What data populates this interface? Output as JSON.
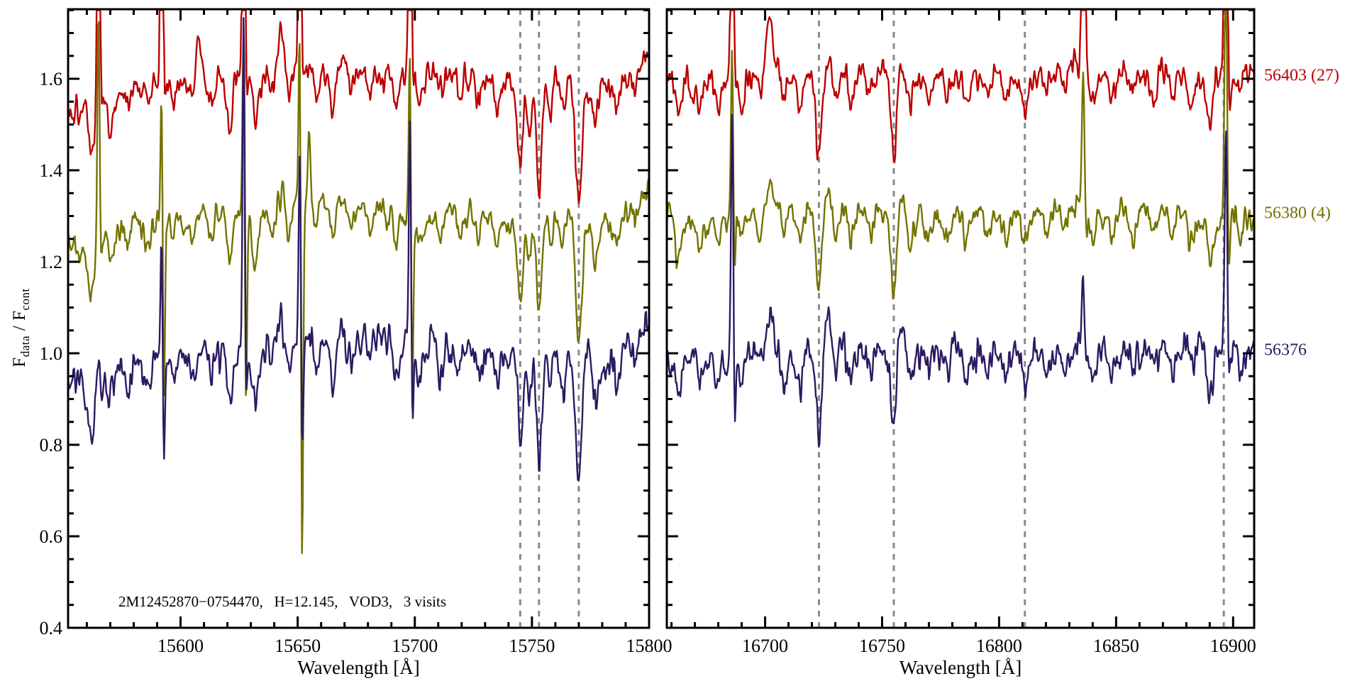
{
  "figure": {
    "ylabel_f1": "F",
    "ylabel_s1": "data",
    "ylabel_f2": " / F",
    "ylabel_s2": "cont"
  },
  "chart_data": {
    "type": "line",
    "title": "",
    "xlabel": "Wavelength [Å]",
    "ylabel": "F_data / F_cont",
    "annotation": "2M12452870−0754470,   H=12.145,   VOD3,   3 visits",
    "ylim": [
      0.4,
      1.752
    ],
    "yticks": [
      0.4,
      0.6,
      0.8,
      1.0,
      1.2,
      1.4,
      1.6
    ],
    "ytick_labels": [
      "0.4",
      "0.6",
      "0.8",
      "1.0",
      "1.2",
      "1.4",
      "1.6"
    ],
    "y_minor_step": 0.05,
    "x_minor_step": 10,
    "grid": false,
    "legend_position": "right-edge",
    "dashed_line_color": "#8a8a8a",
    "frame_color": "#000000",
    "panels": [
      {
        "xlim": [
          15552,
          15800
        ],
        "xticks": [
          15600,
          15650,
          15700,
          15750,
          15800
        ],
        "xtick_labels": [
          "15600",
          "15650",
          "15700",
          "15750",
          "15800"
        ],
        "dashed_lines": [
          15745,
          15753,
          15770
        ],
        "continuum": [
          [
            15552,
            -0.05
          ],
          [
            15560,
            -0.075
          ],
          [
            15568,
            -0.05
          ],
          [
            15580,
            -0.02
          ],
          [
            15595,
            -0.005
          ],
          [
            15610,
            0.0
          ],
          [
            15625,
            0.005
          ],
          [
            15640,
            0.015
          ],
          [
            15652,
            0.02
          ],
          [
            15668,
            0.025
          ],
          [
            15682,
            0.02
          ],
          [
            15695,
            0.01
          ],
          [
            15705,
            0.0
          ],
          [
            15715,
            0.01
          ],
          [
            15726,
            0.005
          ],
          [
            15736,
            -0.005
          ],
          [
            15742,
            -0.02
          ],
          [
            15756,
            -0.005
          ],
          [
            15761,
            0.0
          ],
          [
            15774,
            -0.015
          ],
          [
            15782,
            -0.02
          ],
          [
            15790,
            0.0
          ],
          [
            15800,
            0.05
          ]
        ],
        "absorption_features": [
          [
            15562,
            0.1,
            1.2
          ],
          [
            15570,
            0.05,
            1.0
          ],
          [
            15578,
            0.04,
            1.0
          ],
          [
            15586,
            0.05,
            1.0
          ],
          [
            15597,
            0.04,
            1.0
          ],
          [
            15605,
            0.05,
            1.0
          ],
          [
            15613,
            0.06,
            1.0
          ],
          [
            15621,
            0.1,
            1.2
          ],
          [
            15632,
            0.11,
            1.2
          ],
          [
            15639,
            0.05,
            1.0
          ],
          [
            15646,
            0.07,
            1.0
          ],
          [
            15658,
            0.05,
            1.0
          ],
          [
            15665,
            0.08,
            1.1
          ],
          [
            15673,
            0.05,
            1.0
          ],
          [
            15681,
            0.04,
            1.0
          ],
          [
            15692,
            0.07,
            1.0
          ],
          [
            15702,
            0.06,
            1.0
          ],
          [
            15711,
            0.05,
            1.0
          ],
          [
            15719,
            0.05,
            1.0
          ],
          [
            15727,
            0.04,
            1.0
          ],
          [
            15735,
            0.06,
            1.0
          ],
          [
            15745,
            0.16,
            1.1
          ],
          [
            15749,
            0.09,
            0.9
          ],
          [
            15753,
            0.22,
            1.1
          ],
          [
            15758,
            0.07,
            0.9
          ],
          [
            15763,
            0.08,
            0.9
          ],
          [
            15770,
            0.27,
            1.3
          ],
          [
            15777,
            0.09,
            1.1
          ],
          [
            15786,
            0.05,
            1.0
          ],
          [
            15794,
            0.04,
            1.0
          ]
        ],
        "spikes": [
          {
            "wl": 15565,
            "w": 0.5,
            "up": [
              1.2,
              0.55,
              0.06
            ],
            "down": [
              0.05,
              0.08,
              0.03
            ]
          },
          {
            "wl": 15592,
            "w": 0.5,
            "up": [
              1.2,
              0.35,
              0.28
            ],
            "down": [
              0.08,
              0.45,
              0.28
            ]
          },
          {
            "wl": 15608,
            "w": 1.2,
            "up": [
              0.08,
              0.0,
              0.0
            ],
            "down": [
              0,
              0,
              0
            ]
          },
          {
            "wl": 15627,
            "w": 0.5,
            "up": [
              1.2,
              0.5,
              0.75
            ],
            "down": [
              0.1,
              0.5,
              0.17
            ]
          },
          {
            "wl": 15643,
            "w": 1.2,
            "up": [
              0.09,
              0.04,
              0.05
            ],
            "down": [
              0,
              0,
              0
            ]
          },
          {
            "wl": 15651,
            "w": 0.5,
            "up": [
              1.2,
              0.55,
              0.5
            ],
            "down": [
              0.08,
              0.9,
              0.3
            ]
          },
          {
            "wl": 15655,
            "w": 0.7,
            "up": [
              0.0,
              0.18,
              0.0
            ],
            "down": [
              0,
              0.05,
              0
            ]
          },
          {
            "wl": 15698,
            "w": 0.5,
            "up": [
              1.2,
              0.45,
              0.55
            ],
            "down": [
              0.05,
              0.5,
              0.25
            ]
          }
        ]
      },
      {
        "xlim": [
          16658,
          16909
        ],
        "xticks": [
          16700,
          16750,
          16800,
          16850,
          16900
        ],
        "xtick_labels": [
          "16700",
          "16750",
          "16800",
          "16850",
          "16900"
        ],
        "dashed_lines": [
          16723,
          16755,
          16811,
          16896
        ],
        "continuum": [
          [
            16658,
            0.005
          ],
          [
            16668,
            -0.01
          ],
          [
            16678,
            -0.015
          ],
          [
            16692,
            0.0
          ],
          [
            16700,
            0.01
          ],
          [
            16712,
            0.0
          ],
          [
            16726,
            0.0
          ],
          [
            16740,
            0.01
          ],
          [
            16752,
            0.0
          ],
          [
            16766,
            0.0
          ],
          [
            16780,
            0.005
          ],
          [
            16795,
            0.0
          ],
          [
            16810,
            0.01
          ],
          [
            16825,
            0.005
          ],
          [
            16838,
            0.01
          ],
          [
            16852,
            0.005
          ],
          [
            16866,
            0.015
          ],
          [
            16880,
            0.005
          ],
          [
            16893,
            -0.01
          ],
          [
            16903,
            0.0
          ],
          [
            16909,
            0.01
          ]
        ],
        "absorption_features": [
          [
            16663,
            0.07,
            1.1
          ],
          [
            16672,
            0.05,
            1.0
          ],
          [
            16680,
            0.06,
            1.0
          ],
          [
            16690,
            0.05,
            1.0
          ],
          [
            16698,
            0.04,
            1.0
          ],
          [
            16708,
            0.05,
            1.0
          ],
          [
            16715,
            0.06,
            1.0
          ],
          [
            16723,
            0.18,
            1.2
          ],
          [
            16730,
            0.05,
            1.0
          ],
          [
            16737,
            0.06,
            1.0
          ],
          [
            16745,
            0.05,
            1.0
          ],
          [
            16755,
            0.17,
            1.2
          ],
          [
            16762,
            0.06,
            1.0
          ],
          [
            16770,
            0.05,
            1.0
          ],
          [
            16778,
            0.05,
            1.0
          ],
          [
            16786,
            0.06,
            1.0
          ],
          [
            16795,
            0.04,
            1.0
          ],
          [
            16803,
            0.05,
            1.0
          ],
          [
            16811,
            0.07,
            1.1
          ],
          [
            16820,
            0.05,
            1.0
          ],
          [
            16828,
            0.05,
            1.0
          ],
          [
            16840,
            0.07,
            1.1
          ],
          [
            16848,
            0.05,
            1.0
          ],
          [
            16857,
            0.05,
            1.0
          ],
          [
            16866,
            0.06,
            1.0
          ],
          [
            16874,
            0.05,
            1.0
          ],
          [
            16882,
            0.05,
            1.0
          ],
          [
            16890,
            0.09,
            1.2
          ],
          [
            16903,
            0.05,
            1.0
          ]
        ],
        "spikes": [
          {
            "wl": 16686,
            "w": 0.5,
            "up": [
              1.2,
              0.4,
              0.6
            ],
            "down": [
              0.07,
              0.2,
              0.23
            ]
          },
          {
            "wl": 16702,
            "w": 1.5,
            "up": [
              0.13,
              0.05,
              0.1
            ],
            "down": [
              0,
              0,
              0
            ]
          },
          {
            "wl": 16727,
            "w": 1.5,
            "up": [
              0.04,
              0.04,
              0.09
            ],
            "down": [
              0,
              0,
              0
            ]
          },
          {
            "wl": 16758,
            "w": 1.5,
            "up": [
              0.03,
              0.04,
              0.08
            ],
            "down": [
              0,
              0,
              0
            ]
          },
          {
            "wl": 16836,
            "w": 0.6,
            "up": [
              1.2,
              0.35,
              0.17
            ],
            "down": [
              0.03,
              0.1,
              0.05
            ]
          },
          {
            "wl": 16897,
            "w": 0.6,
            "up": [
              1.2,
              0.7,
              0.5
            ],
            "down": [
              0.2,
              0.25,
              0.12
            ]
          }
        ]
      }
    ],
    "series": [
      {
        "label": "56403 (27)",
        "color": "#bb0000",
        "baseline": 1.6,
        "noise": 0.016,
        "seed": 11
      },
      {
        "label": "56380 (4)",
        "color": "#737300",
        "baseline": 1.3,
        "noise": 0.015,
        "seed": 22
      },
      {
        "label": "56376",
        "color": "#2b1a62",
        "baseline": 1.0,
        "noise": 0.02,
        "seed": 33
      }
    ]
  }
}
